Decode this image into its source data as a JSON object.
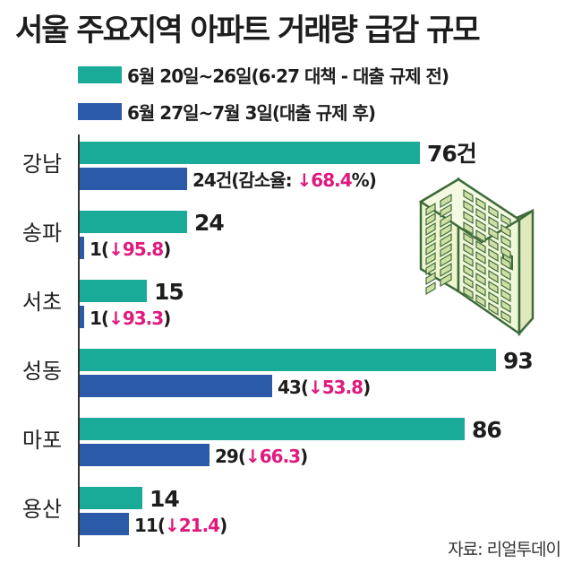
{
  "title": "서울 주요지역 아파트 거래량 급감 규모",
  "legend": [
    {
      "label": "6월 20일~26일(6·27 대책 - 대출 규제 전)",
      "color": "#1aaa98"
    },
    {
      "label": "6월 27일~7월 3일(대출 규제 후)",
      "color": "#2a5aa8"
    }
  ],
  "source": "자료: 리얼투데이",
  "chart_data": {
    "type": "bar",
    "orientation": "horizontal",
    "categories": [
      "강남",
      "송파",
      "서초",
      "성동",
      "마포",
      "용산"
    ],
    "series": [
      {
        "name": "6월 20일~26일(6·27 대책 - 대출 규제 전)",
        "values": [
          76,
          24,
          15,
          93,
          86,
          14
        ]
      },
      {
        "name": "6월 27일~7월 3일(대출 규제 후)",
        "values": [
          24,
          1,
          1,
          43,
          29,
          11
        ]
      }
    ],
    "before_labels": [
      "76건",
      "24",
      "15",
      "93",
      "86",
      "14"
    ],
    "after_labels": [
      {
        "value": "24건(감소율: ",
        "pct": "↓68.4",
        "suffix": "%)"
      },
      {
        "value": "1(",
        "pct": "↓95.8",
        "suffix": ")"
      },
      {
        "value": "1(",
        "pct": "↓93.3",
        "suffix": ")"
      },
      {
        "value": "43(",
        "pct": "↓53.8",
        "suffix": ")"
      },
      {
        "value": "29(",
        "pct": "↓66.3",
        "suffix": ")"
      },
      {
        "value": "11(",
        "pct": "↓21.4",
        "suffix": ")"
      }
    ],
    "colors": {
      "before": "#1aaa98",
      "after": "#2a5aa8",
      "decrease": "#e0197d",
      "axis": "#333333"
    }
  }
}
